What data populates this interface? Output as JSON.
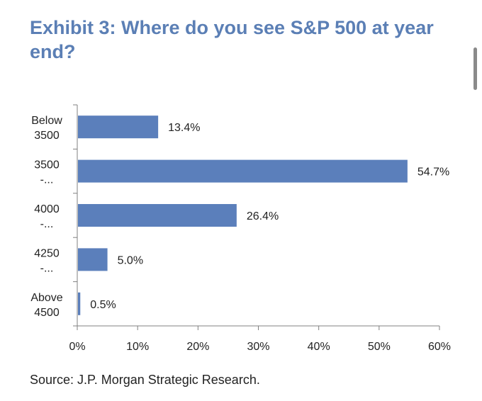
{
  "title": "Exhibit 3: Where do you see S&P 500 at year end?",
  "source": "Source: J.P. Morgan Strategic Research.",
  "chart_data": {
    "type": "bar",
    "orientation": "horizontal",
    "categories": [
      [
        "Below",
        "3500"
      ],
      [
        "3500",
        "-..."
      ],
      [
        "4000",
        "-..."
      ],
      [
        "4250",
        "-..."
      ],
      [
        "Above",
        "4500"
      ]
    ],
    "values": [
      13.4,
      54.7,
      26.4,
      5.0,
      0.5
    ],
    "data_labels": [
      "13.4%",
      "54.7%",
      "26.4%",
      "5.0%",
      "0.5%"
    ],
    "xlim": [
      0,
      60
    ],
    "xticks": [
      0,
      10,
      20,
      30,
      40,
      50,
      60
    ],
    "xtick_labels": [
      "0%",
      "10%",
      "20%",
      "30%",
      "40%",
      "50%",
      "60%"
    ],
    "bar_color": "#5b7fbb",
    "grid": false,
    "legend": "none"
  }
}
